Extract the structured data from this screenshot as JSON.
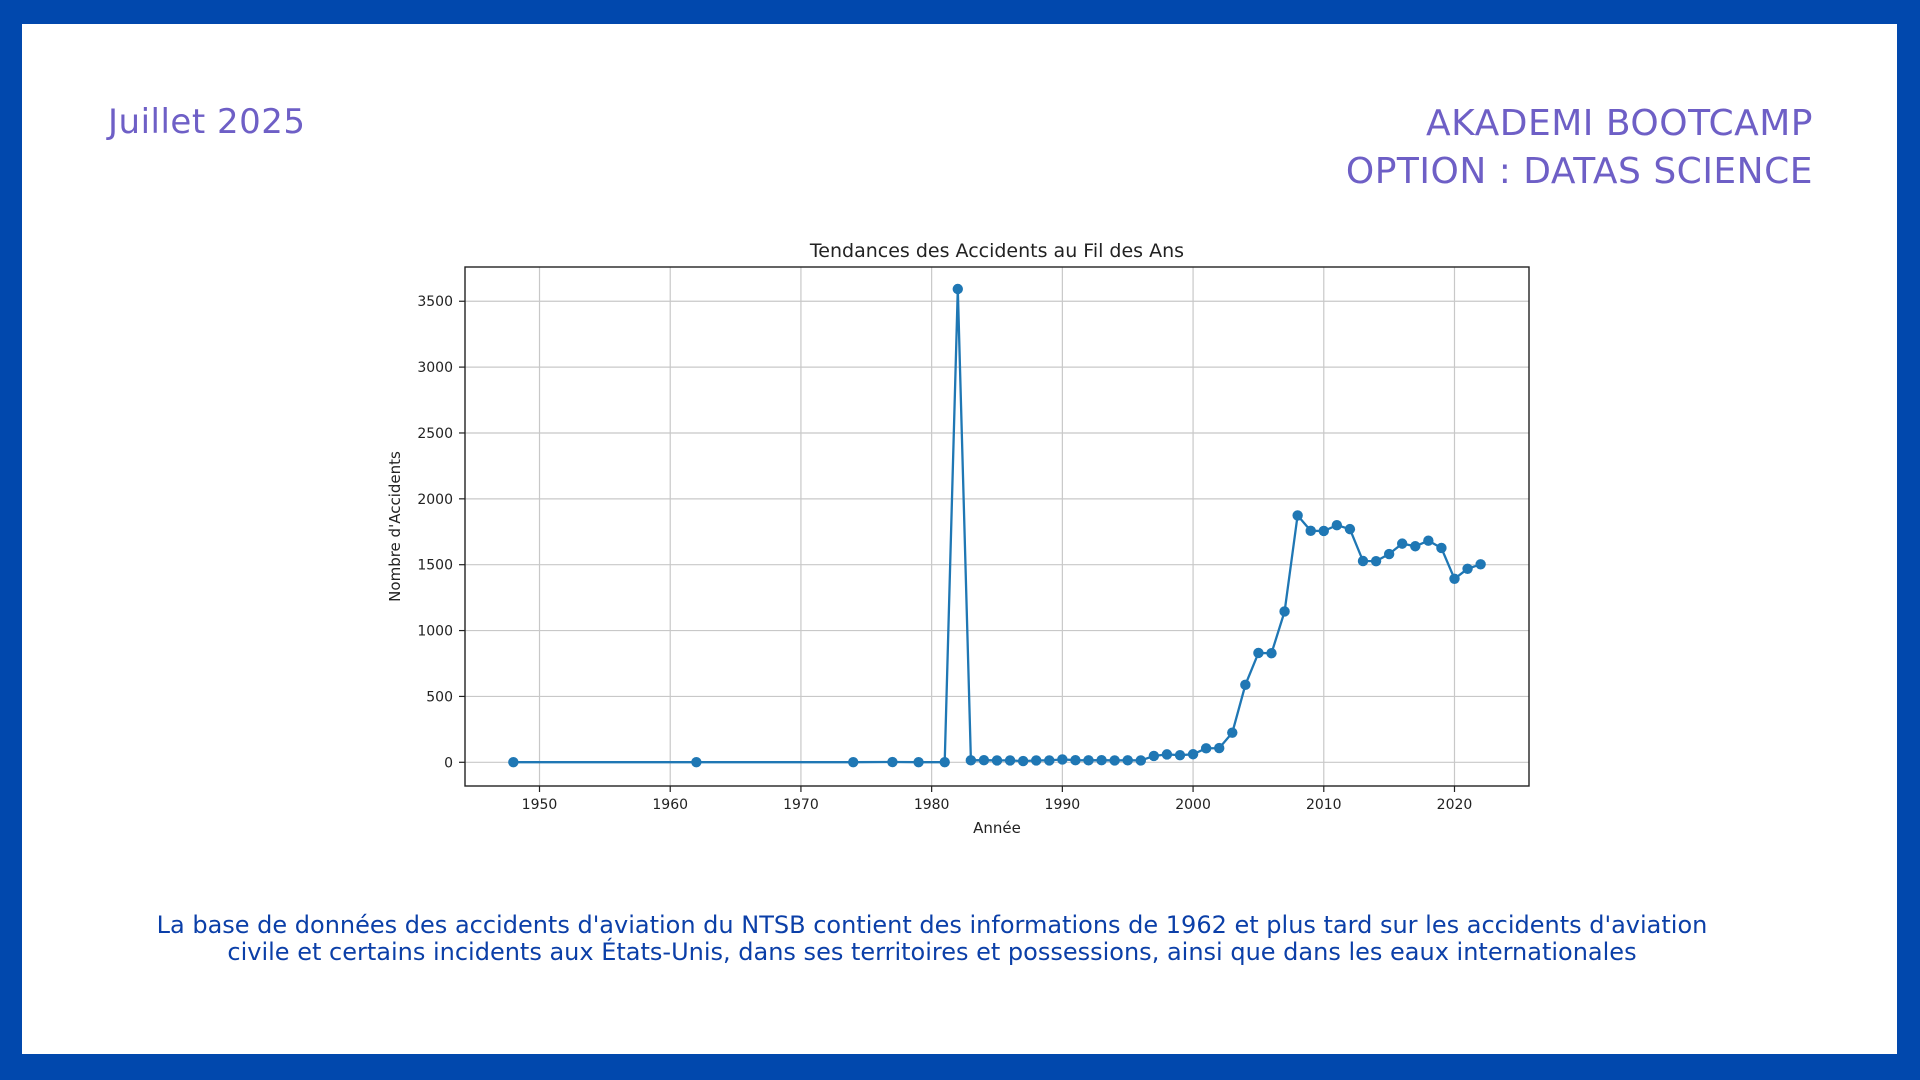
{
  "header": {
    "date": "Juillet 2025",
    "brand_line1": "AKADEMI BOOTCAMP",
    "brand_line2": "OPTION : DATAS SCIENCE"
  },
  "caption": {
    "line1": "La base de données des accidents d'aviation du NTSB contient des informations de 1962 et plus tard sur les accidents d'aviation",
    "line2": "civile et certains incidents aux États-Unis, dans ses territoires et possessions, ainsi que dans les eaux internationales"
  },
  "colors": {
    "frame": "#0148ad",
    "accent": "#6e5fc6",
    "caption": "#0b3fa8",
    "series": "#1f77b4"
  },
  "chart_data": {
    "type": "line",
    "title": "Tendances des Accidents au Fil des Ans",
    "xlabel": "Année",
    "ylabel": "Nombre d'Accidents",
    "xlim": [
      1944.3,
      2025.7
    ],
    "ylim": [
      -180,
      3760
    ],
    "xticks": [
      1950,
      1960,
      1970,
      1980,
      1990,
      2000,
      2010,
      2020
    ],
    "yticks": [
      0,
      500,
      1000,
      1500,
      2000,
      2500,
      3000,
      3500
    ],
    "grid": true,
    "series": [
      {
        "marker": "circle",
        "x": [
          1948,
          1962,
          1974,
          1977,
          1979,
          1981,
          1982,
          1983,
          1984,
          1985,
          1986,
          1987,
          1988,
          1989,
          1990,
          1991,
          1992,
          1993,
          1994,
          1995,
          1996,
          1997,
          1998,
          1999,
          2000,
          2001,
          2002,
          2003,
          2004,
          2005,
          2006,
          2007,
          2008,
          2009,
          2010,
          2011,
          2012,
          2013,
          2014,
          2015,
          2016,
          2017,
          2018,
          2019,
          2020,
          2021,
          2022
        ],
        "y": [
          1,
          1,
          1,
          2,
          1,
          1,
          3593,
          15,
          16,
          14,
          14,
          9,
          14,
          14,
          22,
          16,
          15,
          16,
          14,
          15,
          14,
          48,
          60,
          54,
          61,
          106,
          108,
          225,
          588,
          830,
          828,
          1145,
          1874,
          1757,
          1756,
          1800,
          1770,
          1528,
          1527,
          1581,
          1660,
          1640,
          1682,
          1627,
          1393,
          1469,
          1503
        ]
      }
    ]
  }
}
